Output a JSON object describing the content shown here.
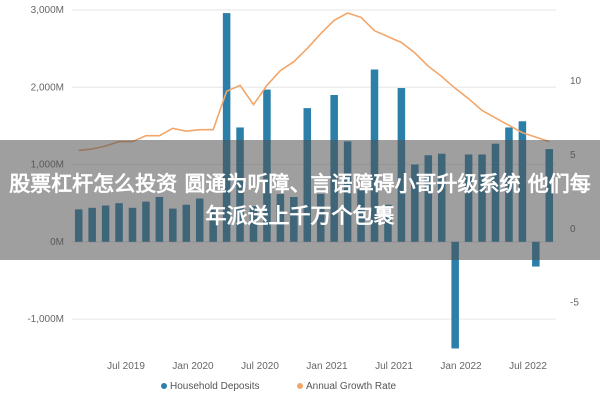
{
  "chart_data": {
    "type": "bar+line",
    "title": "",
    "x_tick_labels": [
      "Jul 2019",
      "Jan 2020",
      "Jul 2020",
      "Jan 2021",
      "Jul 2021",
      "Jan 2022",
      "Jul 2022"
    ],
    "y_left_ticks": [
      "3,000M",
      "2,000M",
      "1,000M",
      "0M",
      "-1,000M"
    ],
    "y_left_range": [
      -1400,
      3000
    ],
    "y_right_ticks": [
      "10",
      "5",
      "0",
      "-5"
    ],
    "y_right_range": [
      -8.2,
      14.8
    ],
    "series": [
      {
        "name": "Household Deposits",
        "kind": "bar",
        "color": "#2C7FA8",
        "values": [
          420,
          440,
          470,
          500,
          440,
          520,
          580,
          430,
          480,
          560,
          420,
          2960,
          1480,
          460,
          1970,
          620,
          580,
          1730,
          620,
          1900,
          1300,
          680,
          2230,
          480,
          1990,
          1000,
          1120,
          1140,
          -1380,
          1130,
          1130,
          1270,
          1480,
          1560,
          -320,
          1200
        ]
      },
      {
        "name": "Annual Growth Rate",
        "kind": "line",
        "color": "#F2A66A",
        "values": [
          5.3,
          5.4,
          5.6,
          5.9,
          5.9,
          6.3,
          6.3,
          6.8,
          6.6,
          6.7,
          6.7,
          9.3,
          9.7,
          8.4,
          9.7,
          10.7,
          11.3,
          12.2,
          13.2,
          14.1,
          14.6,
          14.3,
          13.4,
          13.0,
          12.6,
          11.9,
          11.0,
          10.3,
          9.5,
          8.8,
          8.0,
          7.5,
          7.0,
          6.5,
          6.2,
          5.9
        ]
      }
    ],
    "legend": [
      "Household Deposits",
      "Annual Growth Rate"
    ],
    "legend_position": "bottom"
  },
  "banner": {
    "text": "股票杠杆怎么投资 圆通为听障、言语障碍小哥升级系统 他们每年派送上千万个包裹"
  }
}
